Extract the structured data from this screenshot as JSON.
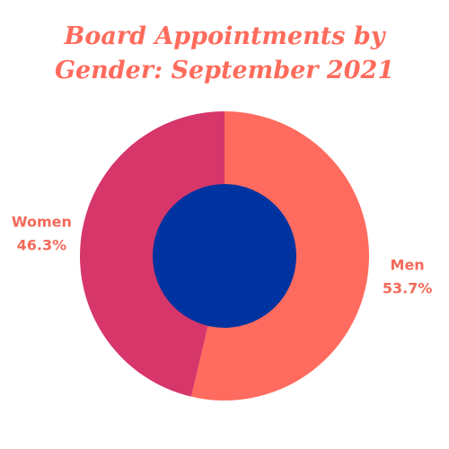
{
  "chart_data": {
    "type": "pie",
    "title": "Board Appointments by Gender: September 2021",
    "categories": [
      "Men",
      "Women"
    ],
    "values": [
      53.7,
      46.3
    ],
    "value_labels": [
      "53.7%",
      "46.3%"
    ],
    "colors": [
      "#ff6b5e",
      "#d6366a"
    ],
    "hole_color": "#0033a0"
  }
}
